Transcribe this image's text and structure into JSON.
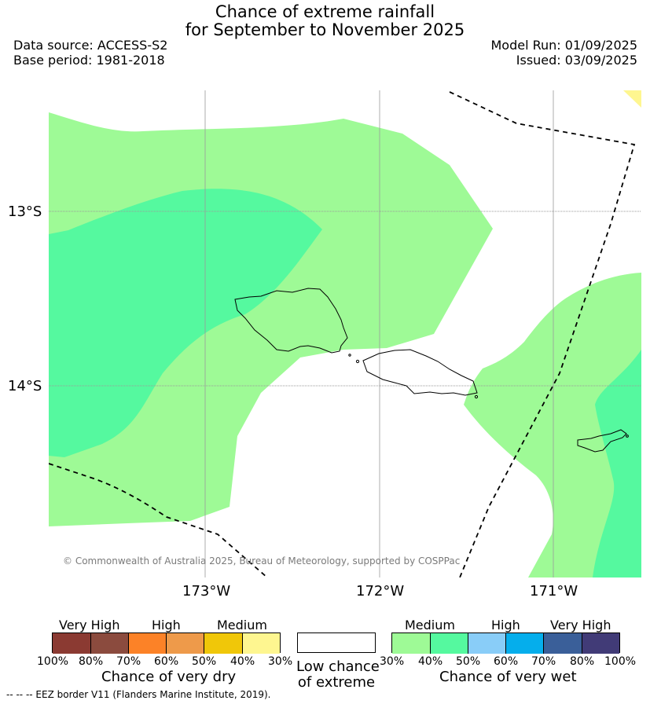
{
  "title": {
    "line1": "Chance of extreme rainfall",
    "line2": "for September to November 2025"
  },
  "meta": {
    "data_source": "Data source: ACCESS-S2",
    "base_period": "Base period: 1981-2018",
    "model_run": "Model Run: 01/09/2025",
    "issued": "Issued: 03/09/2025"
  },
  "map": {
    "lat_labels": [
      "13°S",
      "14°S"
    ],
    "lon_labels": [
      "173°W",
      "172°W",
      "171°W"
    ],
    "attribution": "© Commonwealth of Australia 2025, Bureau of Meteorology, supported by COSPPac",
    "colors": {
      "medium_wet_40": "#9efa96",
      "medium_wet_50": "#55f99f",
      "medium_dry_30": "#fef690"
    }
  },
  "legend_dry": {
    "category_labels": [
      "Very High",
      "High",
      "Medium"
    ],
    "colors": [
      "#8b3a32",
      "#8b4b3e",
      "#fc8227",
      "#ee9a4a",
      "#f0c709",
      "#fef690"
    ],
    "ticks": [
      "100%",
      "80%",
      "70%",
      "60%",
      "50%",
      "40%",
      "30%"
    ],
    "caption": "Chance of very dry"
  },
  "legend_low": {
    "caption_line1": "Low chance",
    "caption_line2": "of extreme",
    "color": "#ffffff"
  },
  "legend_wet": {
    "category_labels": [
      "Medium",
      "High",
      "Very High"
    ],
    "colors": [
      "#9efa96",
      "#55f99f",
      "#89cdf8",
      "#05aeec",
      "#3a5f99",
      "#413b77"
    ],
    "ticks": [
      "30%",
      "40%",
      "50%",
      "60%",
      "70%",
      "80%",
      "100%"
    ],
    "caption": "Chance of very wet"
  },
  "footnote": "--  --  -- EEZ border V11 (Flanders Marine Institute, 2019)."
}
